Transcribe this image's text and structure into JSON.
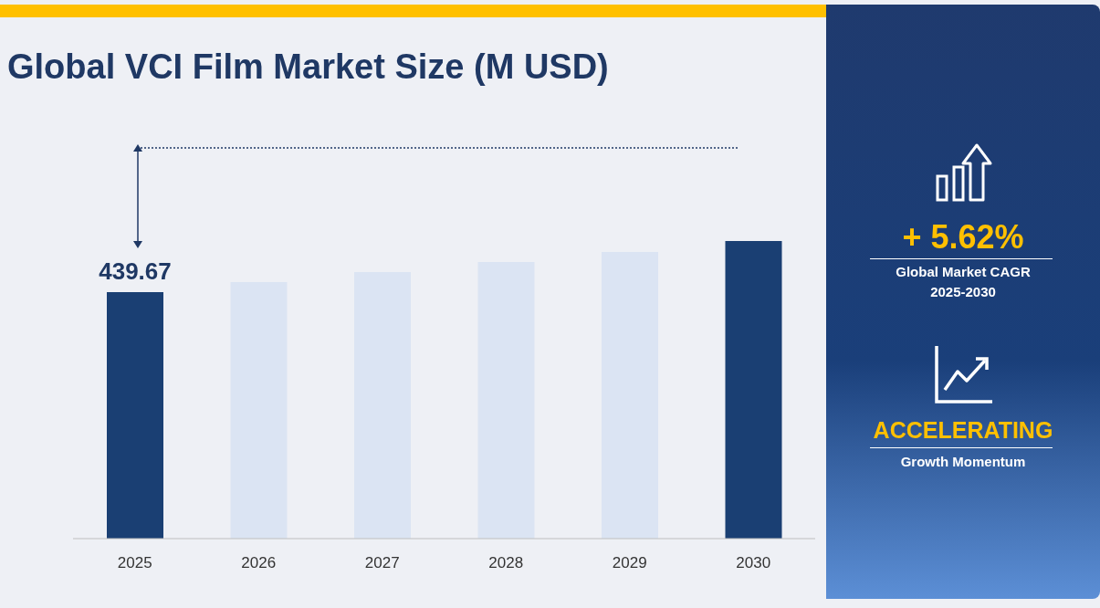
{
  "chart_data": {
    "type": "bar",
    "title": "Global VCI Film Market Size (M USD)",
    "categories": [
      "2025",
      "2026",
      "2027",
      "2028",
      "2029",
      "2030"
    ],
    "values": [
      439.67,
      457.6,
      475.5,
      493.4,
      511.3,
      530.9
    ],
    "colors": [
      "#1a3f73",
      "#dbe4f3",
      "#dbe4f3",
      "#dbe4f3",
      "#dbe4f3",
      "#1a3f73"
    ],
    "value_labels": [
      "439.67",
      null,
      null,
      null,
      null,
      null
    ],
    "annotations": [
      "+ 5.62%",
      "Global Market CAGR",
      "2025-2030",
      "ACCELERATING",
      "Growth Momentum"
    ],
    "tick_labels": "x"
  }
}
